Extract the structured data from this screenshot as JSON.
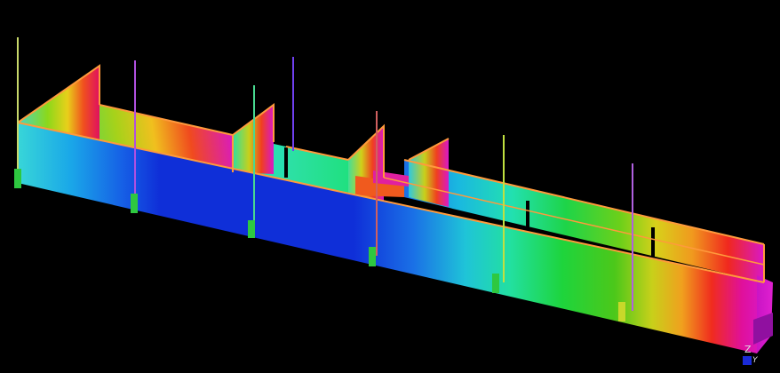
{
  "viewport": {
    "background": "#000000"
  },
  "triad": {
    "z_label": "Z",
    "y_label": "Y",
    "axis_color": "#1a2bd8"
  },
  "colormap": {
    "scheme": "rainbow",
    "outline_color": "#ff9a3c",
    "post_count": 6
  }
}
